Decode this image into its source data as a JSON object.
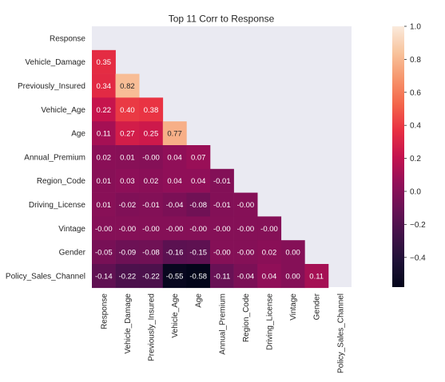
{
  "chart_data": {
    "type": "heatmap",
    "title": "Top 11 Corr to Response",
    "variables": [
      "Response",
      "Vehicle_Damage",
      "Previously_Insured",
      "Vehicle_Age",
      "Age",
      "Annual_Premium",
      "Region_Code",
      "Driving_License",
      "Vintage",
      "Gender",
      "Policy_Sales_Channel"
    ],
    "mask": "upper-triangle",
    "values": [
      [
        null,
        null,
        null,
        null,
        null,
        null,
        null,
        null,
        null,
        null,
        null
      ],
      [
        0.35,
        null,
        null,
        null,
        null,
        null,
        null,
        null,
        null,
        null,
        null
      ],
      [
        0.34,
        0.82,
        null,
        null,
        null,
        null,
        null,
        null,
        null,
        null,
        null
      ],
      [
        0.22,
        0.4,
        0.38,
        null,
        null,
        null,
        null,
        null,
        null,
        null,
        null
      ],
      [
        0.11,
        0.27,
        0.25,
        0.77,
        null,
        null,
        null,
        null,
        null,
        null,
        null
      ],
      [
        0.02,
        0.01,
        -0.0,
        0.04,
        0.07,
        null,
        null,
        null,
        null,
        null,
        null
      ],
      [
        0.01,
        0.03,
        0.02,
        0.04,
        0.04,
        -0.01,
        null,
        null,
        null,
        null,
        null
      ],
      [
        0.01,
        -0.02,
        -0.01,
        -0.04,
        -0.08,
        -0.01,
        -0.0,
        null,
        null,
        null,
        null
      ],
      [
        -0.0,
        -0.0,
        -0.0,
        -0.0,
        -0.0,
        -0.0,
        -0.0,
        -0.0,
        null,
        null,
        null
      ],
      [
        -0.05,
        -0.09,
        -0.08,
        -0.16,
        -0.15,
        -0.0,
        -0.0,
        0.02,
        0.0,
        null,
        null
      ],
      [
        -0.14,
        -0.22,
        -0.22,
        -0.55,
        -0.58,
        -0.11,
        -0.04,
        0.04,
        0.0,
        0.11,
        null
      ]
    ],
    "labels": [
      [
        "",
        "",
        "",
        "",
        "",
        "",
        "",
        "",
        "",
        "",
        ""
      ],
      [
        "0.35",
        "",
        "",
        "",
        "",
        "",
        "",
        "",
        "",
        "",
        ""
      ],
      [
        "0.34",
        "0.82",
        "",
        "",
        "",
        "",
        "",
        "",
        "",
        "",
        ""
      ],
      [
        "0.22",
        "0.40",
        "0.38",
        "",
        "",
        "",
        "",
        "",
        "",
        "",
        ""
      ],
      [
        "0.11",
        "0.27",
        "0.25",
        "0.77",
        "",
        "",
        "",
        "",
        "",
        "",
        ""
      ],
      [
        "0.02",
        "0.01",
        "-0.00",
        "0.04",
        "0.07",
        "",
        "",
        "",
        "",
        "",
        ""
      ],
      [
        "0.01",
        "0.03",
        "0.02",
        "0.04",
        "0.04",
        "-0.01",
        "",
        "",
        "",
        "",
        ""
      ],
      [
        "0.01",
        "-0.02",
        "-0.01",
        "-0.04",
        "-0.08",
        "-0.01",
        "-0.00",
        "",
        "",
        "",
        ""
      ],
      [
        "-0.00",
        "-0.00",
        "-0.00",
        "-0.00",
        "-0.00",
        "-0.00",
        "-0.00",
        "-0.00",
        "",
        "",
        ""
      ],
      [
        "-0.05",
        "-0.09",
        "-0.08",
        "-0.16",
        "-0.15",
        "-0.00",
        "-0.00",
        "0.02",
        "0.00",
        "",
        ""
      ],
      [
        "-0.14",
        "-0.22",
        "-0.22",
        "-0.55",
        "-0.58",
        "-0.11",
        "-0.04",
        "0.04",
        "0.00",
        "0.11",
        ""
      ]
    ],
    "colorbar": {
      "min": -0.58,
      "max": 1.0,
      "ticks": [
        1.0,
        0.8,
        0.6,
        0.4,
        0.2,
        0.0,
        -0.2,
        -0.4
      ],
      "tick_labels": [
        "1.0",
        "0.8",
        "0.6",
        "0.4",
        "0.2",
        "0.0",
        "−0.2",
        "−0.4"
      ]
    },
    "colormap": "rocket",
    "mask_color": "#eaeaf2"
  }
}
